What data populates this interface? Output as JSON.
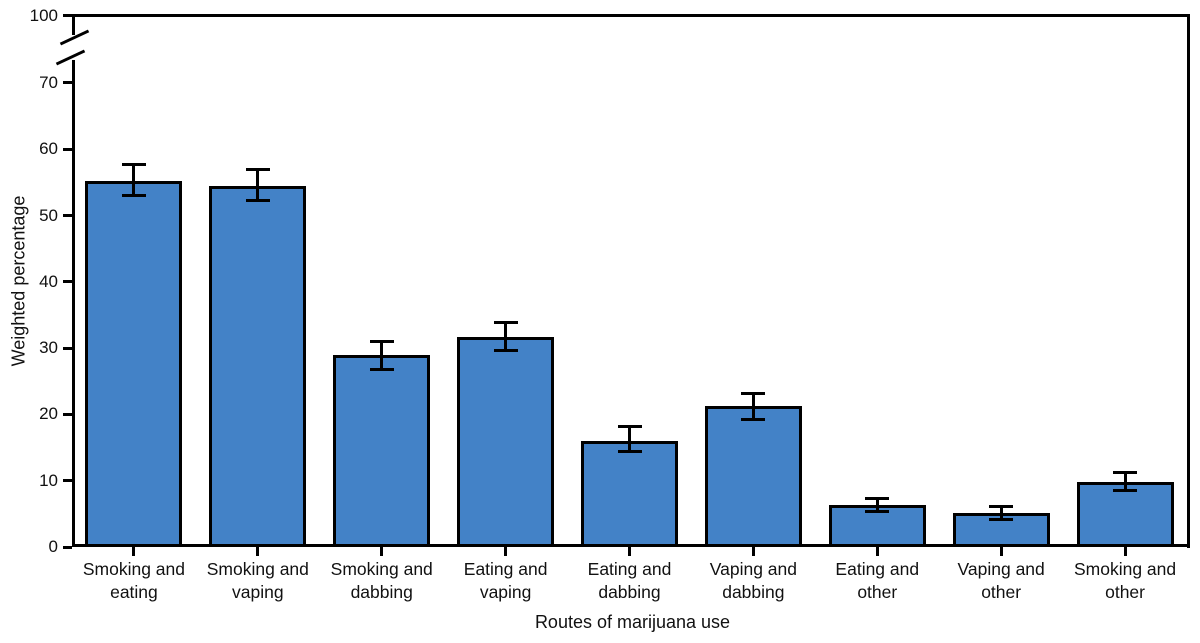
{
  "chart_data": {
    "type": "bar",
    "title": "",
    "xlabel": "Routes of marijuana use",
    "ylabel": "Weighted percentage",
    "categories": [
      "Smoking and eating",
      "Smoking and vaping",
      "Smoking and dabbing",
      "Eating and vaping",
      "Eating and dabbing",
      "Vaping and dabbing",
      "Eating and other",
      "Vaping and other",
      "Smoking and other"
    ],
    "values": [
      55.2,
      54.4,
      28.9,
      31.6,
      16.0,
      21.2,
      6.3,
      5.1,
      9.8
    ],
    "ci_low": [
      53.0,
      52.2,
      26.7,
      29.6,
      14.4,
      19.3,
      5.3,
      4.2,
      8.5
    ],
    "ci_high": [
      57.7,
      56.9,
      31.0,
      33.9,
      18.1,
      23.2,
      7.3,
      6.1,
      11.3
    ],
    "yticks": [
      0,
      10,
      20,
      30,
      40,
      50,
      60,
      70,
      100
    ],
    "axis_break": {
      "between": [
        70,
        100
      ]
    },
    "legend": "none",
    "grid": "off",
    "bar_color": "#4382C7",
    "line_color": "#000000"
  }
}
